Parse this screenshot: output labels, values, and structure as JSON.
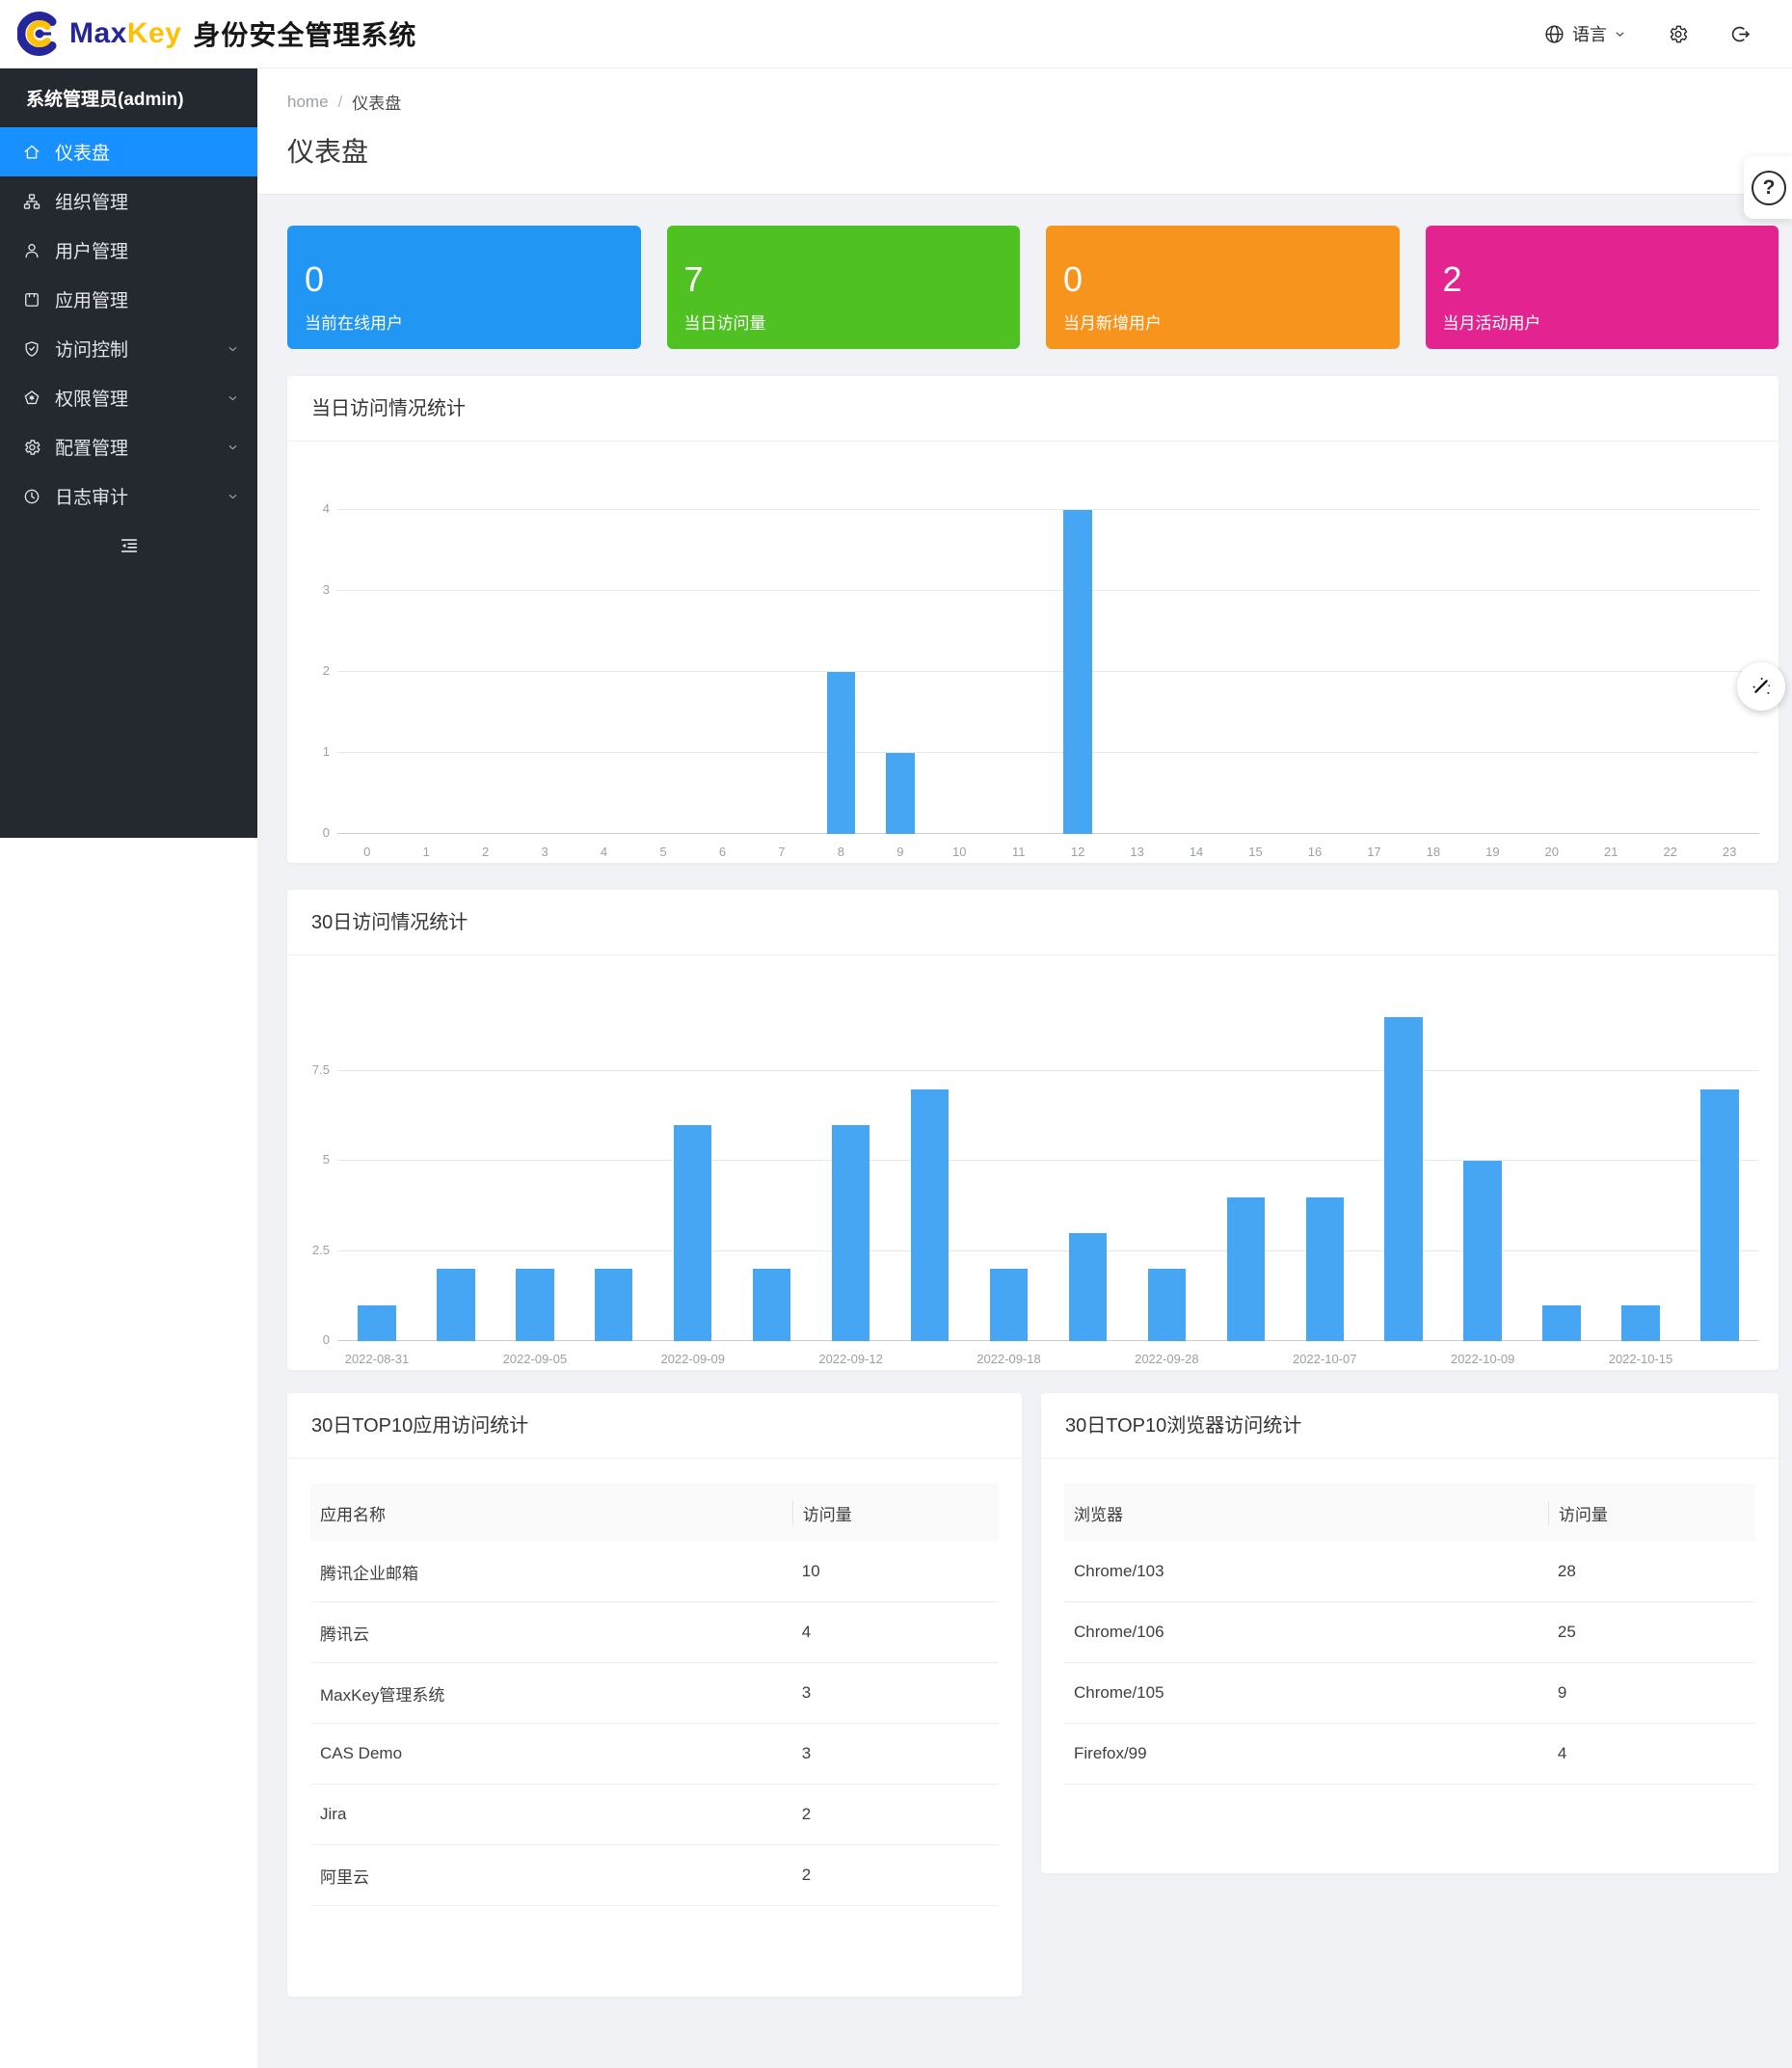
{
  "header": {
    "brand": {
      "max": "Max",
      "key": "Key"
    },
    "app_title": "身份安全管理系统",
    "language": {
      "label": "语言",
      "icon": "globe-icon",
      "chevron_icon": "chevron-down-icon"
    },
    "icons": [
      "globe-icon",
      "gear-icon",
      "logout-icon"
    ]
  },
  "sidebar": {
    "user": "系统管理员(admin)",
    "collapse_icon": "outdent-icon",
    "items": [
      {
        "icon": "home-icon",
        "label": "仪表盘",
        "active": true,
        "expandable": false
      },
      {
        "icon": "org-icon",
        "label": "组织管理",
        "active": false,
        "expandable": false
      },
      {
        "icon": "user-icon",
        "label": "用户管理",
        "active": false,
        "expandable": false
      },
      {
        "icon": "app-icon",
        "label": "应用管理",
        "active": false,
        "expandable": false
      },
      {
        "icon": "shield-check-icon",
        "label": "访问控制",
        "active": false,
        "expandable": true
      },
      {
        "icon": "pentagon-icon",
        "label": "权限管理",
        "active": false,
        "expandable": true
      },
      {
        "icon": "gear-icon",
        "label": "配置管理",
        "active": false,
        "expandable": true
      },
      {
        "icon": "clock-icon",
        "label": "日志审计",
        "active": false,
        "expandable": true
      }
    ]
  },
  "breadcrumb": {
    "home": "home",
    "separator": "/",
    "current": "仪表盘"
  },
  "page": {
    "title": "仪表盘"
  },
  "stats": [
    {
      "value": "0",
      "label": "当前在线用户",
      "color": "#2196f3"
    },
    {
      "value": "7",
      "label": "当日访问量",
      "color": "#4fc122"
    },
    {
      "value": "0",
      "label": "当月新增用户",
      "color": "#f7941e"
    },
    {
      "value": "2",
      "label": "当月活动用户",
      "color": "#e32490"
    }
  ],
  "chart_data": [
    {
      "type": "bar",
      "title": "当日访问情况统计",
      "xlabel": "",
      "ylabel": "",
      "categories": [
        "0",
        "1",
        "2",
        "3",
        "4",
        "5",
        "6",
        "7",
        "8",
        "9",
        "10",
        "11",
        "12",
        "13",
        "14",
        "15",
        "16",
        "17",
        "18",
        "19",
        "20",
        "21",
        "22",
        "23"
      ],
      "values": [
        0,
        0,
        0,
        0,
        0,
        0,
        0,
        0,
        2,
        1,
        0,
        0,
        4,
        0,
        0,
        0,
        0,
        0,
        0,
        0,
        0,
        0,
        0,
        0
      ],
      "ylim": [
        0,
        4
      ],
      "yticks": [
        0,
        1,
        2,
        3,
        4
      ],
      "bar_color": "#46a6f3",
      "grid": true,
      "legend": false
    },
    {
      "type": "bar",
      "title": "30日访问情况统计",
      "xlabel": "",
      "ylabel": "",
      "values": [
        1,
        2,
        2,
        2,
        6,
        2,
        6,
        7,
        2,
        3,
        2,
        4,
        4,
        9,
        5,
        1,
        1,
        7
      ],
      "tick_labels": [
        "2022-08-31",
        "2022-09-05",
        "2022-09-09",
        "2022-09-12",
        "2022-09-18",
        "2022-09-28",
        "2022-10-07",
        "2022-10-09",
        "2022-10-15"
      ],
      "tick_every": 2,
      "ylim": [
        0,
        9.3
      ],
      "yticks": [
        0,
        2.5,
        5,
        7.5
      ],
      "bar_color": "#46a6f3",
      "grid": true,
      "legend": false
    }
  ],
  "tables": [
    {
      "title": "30日TOP10应用访问统计",
      "headers": [
        "应用名称",
        "访问量"
      ],
      "rows": [
        [
          "腾讯企业邮箱",
          "10"
        ],
        [
          "腾讯云",
          "4"
        ],
        [
          "MaxKey管理系统",
          "3"
        ],
        [
          "CAS Demo",
          "3"
        ],
        [
          "Jira",
          "2"
        ],
        [
          "阿里云",
          "2"
        ]
      ]
    },
    {
      "title": "30日TOP10浏览器访问统计",
      "headers": [
        "浏览器",
        "访问量"
      ],
      "rows": [
        [
          "Chrome/103",
          "28"
        ],
        [
          "Chrome/106",
          "25"
        ],
        [
          "Chrome/105",
          "9"
        ],
        [
          "Firefox/99",
          "4"
        ]
      ]
    }
  ],
  "floating": {
    "help_icon": "question-mark-icon",
    "theme_icon": "magic-wand-icon"
  }
}
